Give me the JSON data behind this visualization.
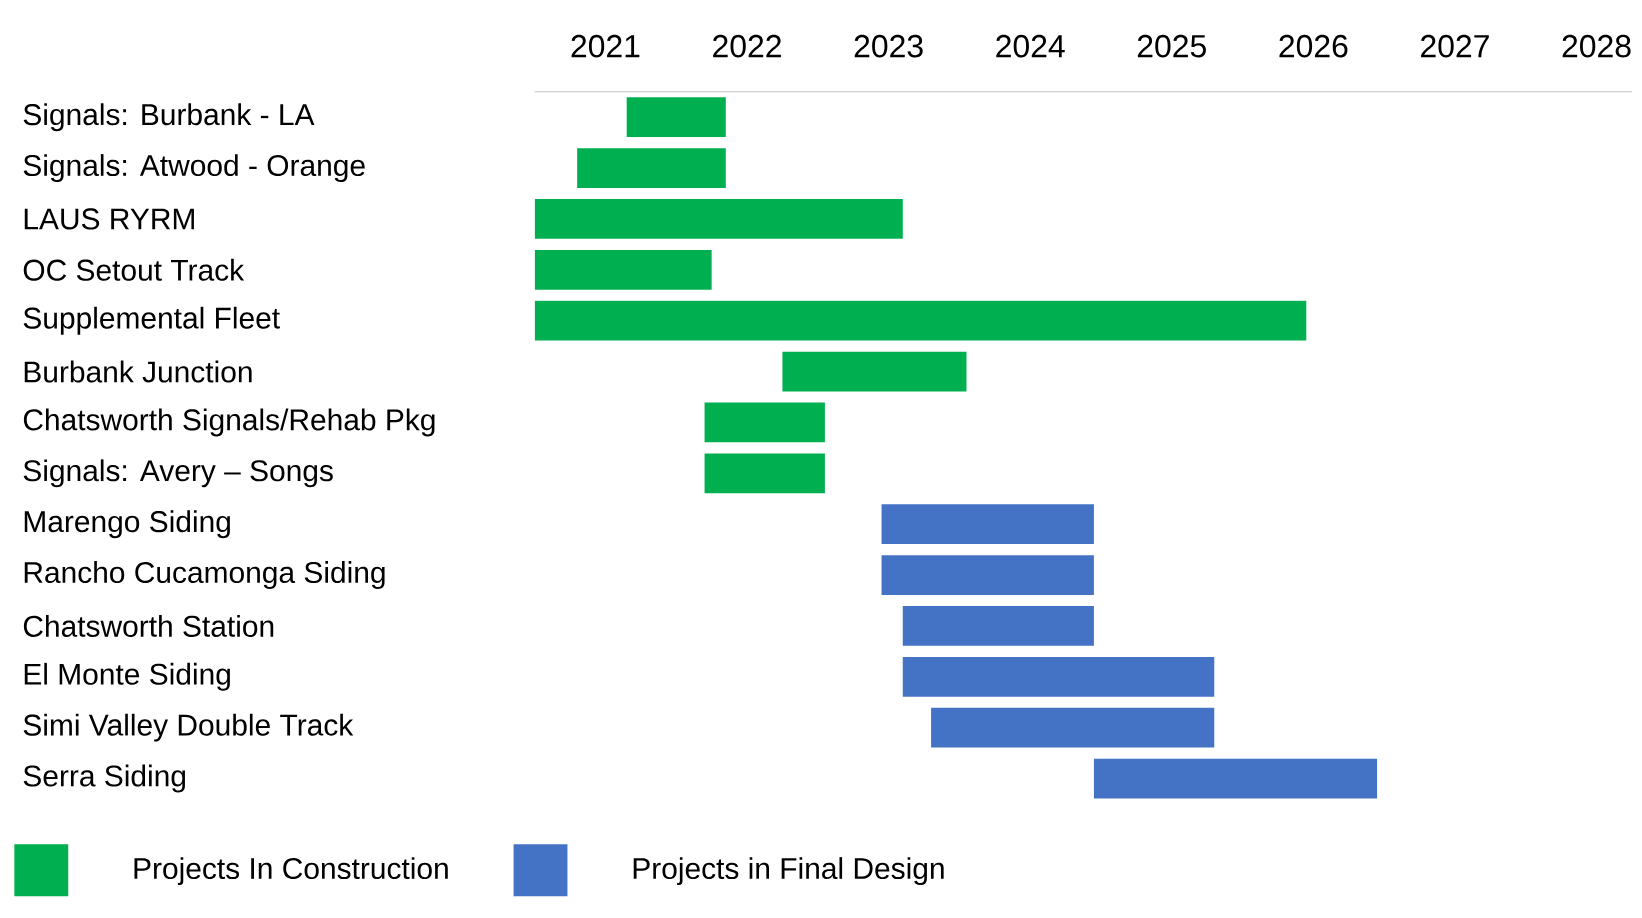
{
  "chart_data": {
    "type": "bar",
    "orientation": "horizontal",
    "legend": "bottom",
    "categories": [
      "Signals: Burbank - LA",
      "Signals: Atwood - Orange",
      "LAUS RYRM",
      "OC Setout Track",
      "Supplemental Fleet",
      "Burbank Junction",
      "Chatsworth Signals/Rehab Pkg",
      "Signals: Avery – Songs",
      "Marengo Siding",
      "Rancho Cucamonga Siding",
      "Chatsworth Station",
      "El Monte Siding",
      "Simi Valley Double Track",
      "Serra Siding"
    ],
    "series": [
      {
        "name": "Projects In Construction",
        "color": "#00b050",
        "base": [
          2021.65,
          2021.3,
          2021,
          2021,
          2021,
          2022.75,
          2022.2,
          2022.2,
          null,
          null,
          null,
          null,
          null,
          null
        ],
        "values": [
          0.7,
          1.05,
          2.6,
          1.25,
          5.45,
          1.3,
          0.85,
          0.85,
          null,
          null,
          null,
          null,
          null,
          null
        ]
      },
      {
        "name": "Projects in Final Design",
        "color": "#4472c4",
        "base": [
          null,
          null,
          null,
          null,
          null,
          null,
          null,
          null,
          2023.45,
          2023.45,
          2023.6,
          2023.6,
          2023.8,
          2024.95
        ],
        "values": [
          null,
          null,
          null,
          null,
          null,
          null,
          null,
          null,
          1.5,
          1.5,
          1.35,
          2.2,
          2.0,
          2.0
        ]
      }
    ],
    "xlim": [
      2021,
      2028.75
    ],
    "xticks": [
      {
        "value": 2021.5,
        "label": "2021"
      },
      {
        "value": 2022.5,
        "label": "2022"
      },
      {
        "value": 2023.5,
        "label": "2023"
      },
      {
        "value": 2024.5,
        "label": "2024"
      },
      {
        "value": 2025.5,
        "label": "2025"
      },
      {
        "value": 2026.5,
        "label": "2026"
      },
      {
        "value": 2027.5,
        "label": "2027"
      },
      {
        "value": 2028.5,
        "label": "2028"
      }
    ]
  }
}
